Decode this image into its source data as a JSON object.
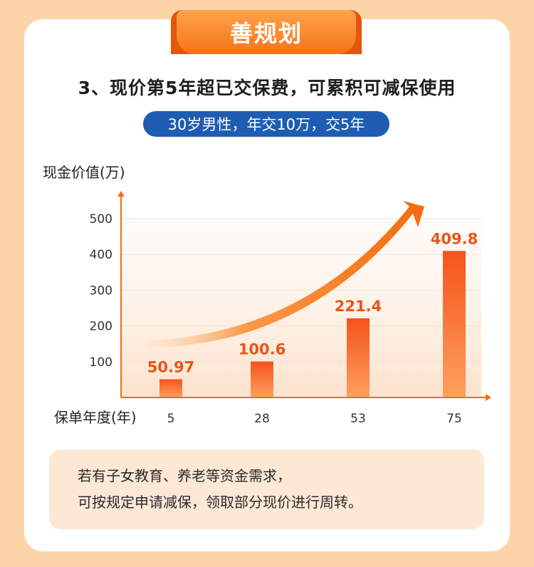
{
  "banner": {
    "title": "善规划"
  },
  "heading": "3、现价第5年超已交保费，可累积可减保使用",
  "subtitle": "30岁男性，年交10万，交5年",
  "note": {
    "line1": "若有子女教育、养老等资金需求，",
    "line2": "可按规定申请减保，领取部分现价进行周转。"
  },
  "colors": {
    "background": "#fdd4a8",
    "accent": "#f67418",
    "pill": "#1e5db1",
    "value_label": "#e8561a",
    "note_bg": "#fde8d6"
  },
  "chart_data": {
    "type": "bar",
    "ylabel": "现金价值(万)",
    "xlabel": "保单年度(年)",
    "categories": [
      "5",
      "28",
      "53",
      "75"
    ],
    "values": [
      50.97,
      100.6,
      221.4,
      409.8
    ],
    "value_labels": [
      "50.97",
      "100.6",
      "221.4",
      "409.8"
    ],
    "yticks": [
      100,
      200,
      300,
      400,
      500
    ],
    "ylim": [
      0,
      500
    ],
    "grid": true,
    "trend_arrow": true
  }
}
